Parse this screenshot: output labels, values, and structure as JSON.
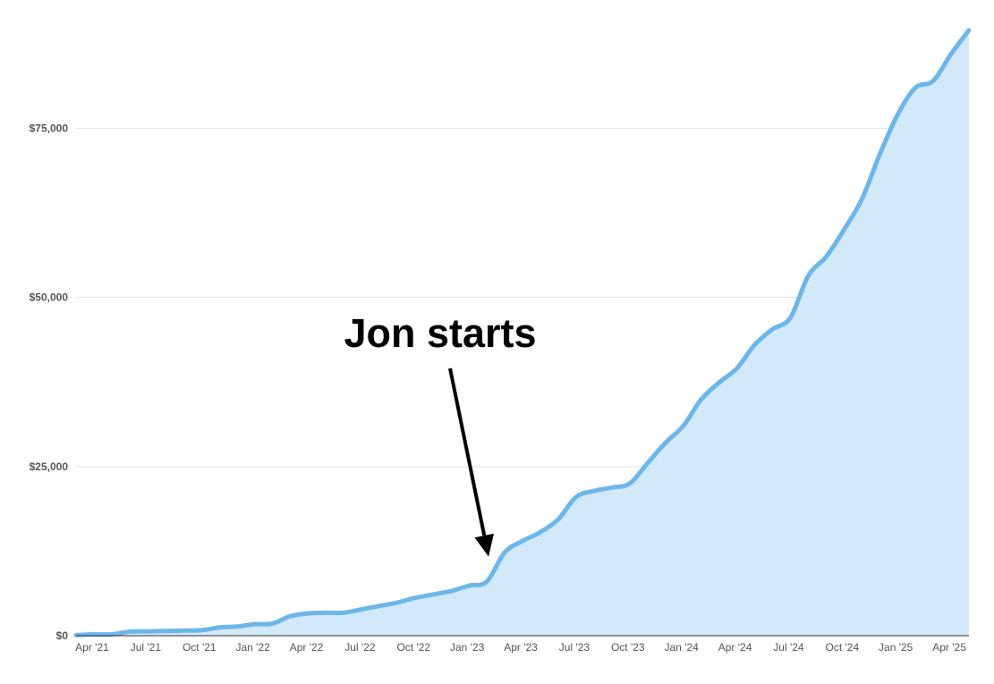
{
  "chart_data": {
    "type": "area",
    "title": "",
    "xlabel": "",
    "ylabel": "",
    "ylim": [
      0,
      90000
    ],
    "grid": true,
    "legend": "none",
    "colors": {
      "line": "#6db6ea",
      "fill": "#d2e9f9",
      "grid": "#e2e2e2",
      "annotation": "#000000"
    },
    "y_ticks": [
      {
        "value": 0,
        "label": "$0"
      },
      {
        "value": 25000,
        "label": "$25,000"
      },
      {
        "value": 50000,
        "label": "$50,000"
      },
      {
        "value": 75000,
        "label": "$75,000"
      }
    ],
    "x_ticks": [
      {
        "date": "2021-04",
        "label": "Apr '21"
      },
      {
        "date": "2021-07",
        "label": "Jul '21"
      },
      {
        "date": "2021-10",
        "label": "Oct '21"
      },
      {
        "date": "2022-01",
        "label": "Jan '22"
      },
      {
        "date": "2022-04",
        "label": "Apr '22"
      },
      {
        "date": "2022-07",
        "label": "Jul '22"
      },
      {
        "date": "2022-10",
        "label": "Oct '22"
      },
      {
        "date": "2023-01",
        "label": "Jan '23"
      },
      {
        "date": "2023-04",
        "label": "Apr '23"
      },
      {
        "date": "2023-07",
        "label": "Jul '23"
      },
      {
        "date": "2023-10",
        "label": "Oct '23"
      },
      {
        "date": "2024-01",
        "label": "Jan '24"
      },
      {
        "date": "2024-04",
        "label": "Apr '24"
      },
      {
        "date": "2024-07",
        "label": "Jul '24"
      },
      {
        "date": "2024-10",
        "label": "Oct '24"
      },
      {
        "date": "2025-01",
        "label": "Jan '25"
      },
      {
        "date": "2025-04",
        "label": "Apr '25"
      }
    ],
    "series": [
      {
        "x": [
          "2021-04",
          "2021-05",
          "2021-06",
          "2021-07",
          "2021-08",
          "2021-09",
          "2021-10",
          "2021-11",
          "2021-12",
          "2022-01",
          "2022-02",
          "2022-03",
          "2022-04",
          "2022-05",
          "2022-06",
          "2022-07",
          "2022-08",
          "2022-09",
          "2022-10",
          "2022-11",
          "2022-12",
          "2023-01",
          "2023-02",
          "2023-03",
          "2023-04",
          "2023-05",
          "2023-06",
          "2023-07",
          "2023-08",
          "2023-09",
          "2023-10",
          "2023-11",
          "2023-12",
          "2024-01",
          "2024-02",
          "2024-03",
          "2024-04",
          "2024-05",
          "2024-06",
          "2024-07",
          "2024-08",
          "2024-09",
          "2024-10",
          "2024-11",
          "2024-12",
          "2025-01",
          "2025-02",
          "2025-03",
          "2025-04",
          "2025-05",
          "2025-06"
        ],
        "values": [
          100,
          200,
          200,
          600,
          650,
          700,
          750,
          800,
          1200,
          1350,
          1700,
          1800,
          2900,
          3300,
          3400,
          3400,
          3900,
          4400,
          4900,
          5600,
          6100,
          6600,
          7400,
          8000,
          12300,
          14000,
          15300,
          17200,
          20500,
          21400,
          21900,
          22500,
          25500,
          28500,
          31000,
          34900,
          37400,
          39500,
          43000,
          45300,
          47000,
          53200,
          56000,
          60000,
          64500,
          71100,
          77000,
          81000,
          82000,
          86000,
          89500
        ]
      }
    ],
    "annotations": [
      {
        "text": "Jon starts",
        "arrow_to": {
          "x": "2023-03",
          "y": 8000
        }
      }
    ]
  }
}
